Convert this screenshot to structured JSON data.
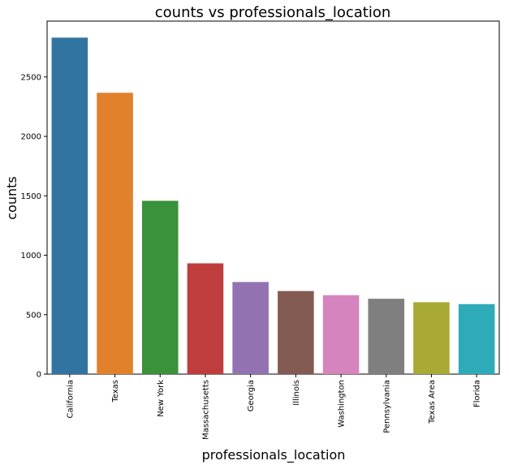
{
  "chart_data": {
    "type": "bar",
    "title": "counts vs professionals_location",
    "xlabel": "professionals_location",
    "ylabel": "counts",
    "categories": [
      "California",
      "Texas",
      "New York",
      "Massachusetts",
      "Georgia",
      "Illinois",
      "Washington",
      "Pennsylvania",
      "Texas Area",
      "Florida"
    ],
    "values": [
      2831,
      2367,
      1458,
      932,
      775,
      699,
      664,
      634,
      605,
      589
    ],
    "colors": [
      "#3274a1",
      "#e1812c",
      "#3a923a",
      "#c03d3e",
      "#9372b2",
      "#845b53",
      "#d684bd",
      "#7f7f7f",
      "#a9aa35",
      "#2eabb8"
    ],
    "ylim": [
      0,
      2970
    ],
    "yticks": [
      0,
      500,
      1000,
      1500,
      2000,
      2500
    ],
    "ytick_labels": [
      "0",
      "500",
      "1000",
      "1500",
      "2000",
      "2500"
    ],
    "grid": false,
    "legend": "none"
  }
}
